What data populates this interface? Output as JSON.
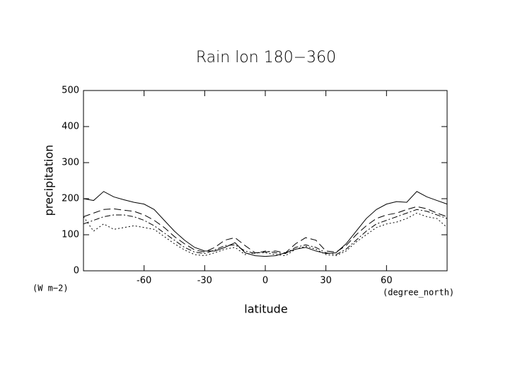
{
  "chart_data": {
    "type": "line",
    "title": "Rain lon 180−360",
    "x_label": "latitude",
    "y_label": "precipitation",
    "y_unit": "(W m−2)",
    "x_unit": "(degree_north)",
    "x": [
      -90,
      -85,
      -80,
      -75,
      -70,
      -65,
      -60,
      -55,
      -50,
      -45,
      -40,
      -35,
      -30,
      -25,
      -20,
      -15,
      -10,
      -5,
      0,
      5,
      10,
      15,
      20,
      25,
      30,
      35,
      40,
      45,
      50,
      55,
      60,
      65,
      70,
      75,
      80,
      85,
      90
    ],
    "series": [
      {
        "color": "#000000",
        "dash": "none",
        "values": [
          200,
          195,
          220,
          205,
          197,
          190,
          185,
          170,
          140,
          110,
          85,
          65,
          55,
          55,
          65,
          78,
          50,
          42,
          40,
          42,
          50,
          60,
          65,
          55,
          48,
          50,
          75,
          110,
          145,
          170,
          185,
          192,
          190,
          220,
          205,
          195,
          185
        ]
      },
      {
        "color": "#000000",
        "dash": "10,5",
        "values": [
          150,
          160,
          170,
          172,
          168,
          165,
          155,
          140,
          120,
          95,
          75,
          58,
          52,
          65,
          85,
          92,
          70,
          50,
          52,
          55,
          50,
          75,
          92,
          85,
          55,
          52,
          70,
          100,
          125,
          145,
          155,
          160,
          170,
          178,
          172,
          160,
          150
        ]
      },
      {
        "color": "#000000",
        "dash": "8,3,2,3",
        "values": [
          130,
          140,
          150,
          155,
          155,
          150,
          140,
          125,
          105,
          85,
          65,
          52,
          48,
          58,
          70,
          72,
          55,
          48,
          55,
          50,
          48,
          65,
          72,
          65,
          50,
          45,
          60,
          85,
          110,
          130,
          140,
          150,
          160,
          170,
          165,
          155,
          145
        ]
      },
      {
        "color": "#000000",
        "dash": "2,3",
        "values": [
          150,
          110,
          130,
          115,
          120,
          125,
          120,
          115,
          95,
          75,
          58,
          45,
          42,
          50,
          60,
          65,
          45,
          50,
          50,
          45,
          42,
          60,
          68,
          60,
          45,
          42,
          55,
          80,
          100,
          120,
          130,
          135,
          145,
          160,
          150,
          145,
          120
        ]
      }
    ],
    "xlim": [
      -90,
      90
    ],
    "ylim": [
      0,
      500
    ],
    "xticks": [
      -60,
      -30,
      0,
      30,
      60
    ],
    "yticks": [
      0,
      100,
      200,
      300,
      400,
      500
    ]
  }
}
